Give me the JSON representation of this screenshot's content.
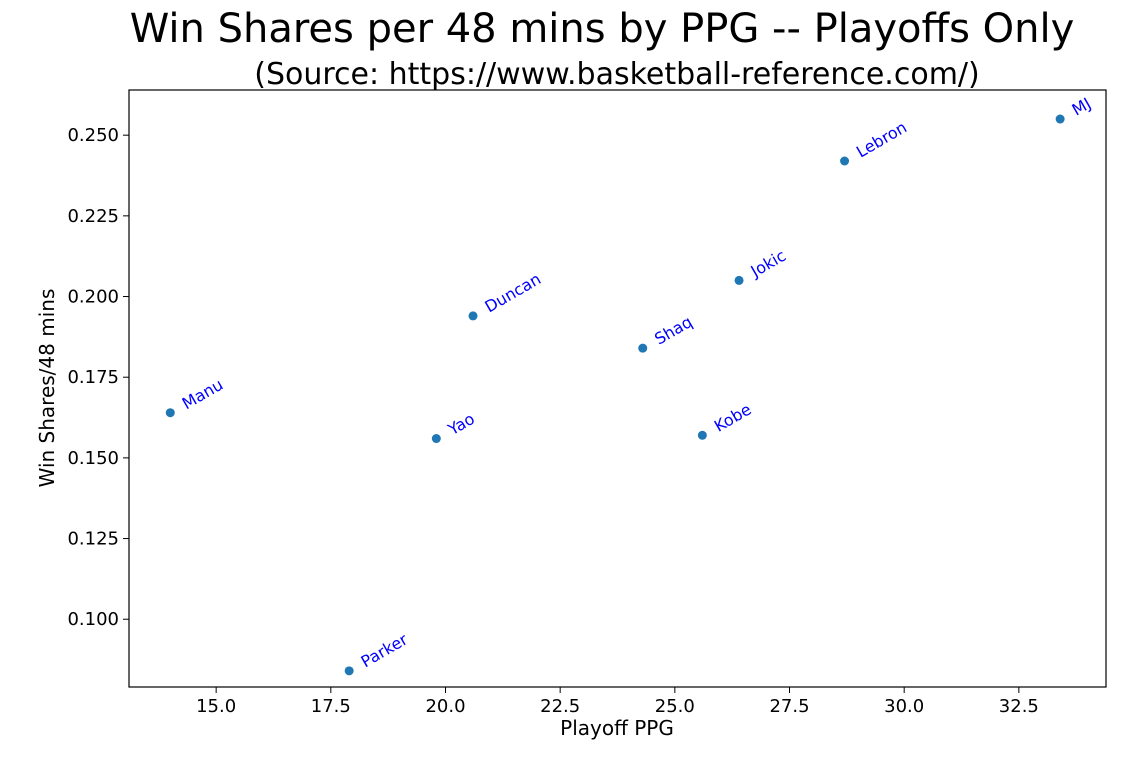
{
  "chart_data": {
    "type": "scatter",
    "title": "Win Shares per 48 mins by PPG -- Playoffs Only",
    "subtitle": "(Source: https://www.basketball-reference.com/)",
    "xlabel": "Playoff PPG",
    "ylabel": "Win Shares/48 mins",
    "xlim": [
      13.1,
      34.4
    ],
    "ylim": [
      0.079,
      0.264
    ],
    "xticks": [
      15.0,
      17.5,
      20.0,
      22.5,
      25.0,
      27.5,
      30.0,
      32.5
    ],
    "xtick_labels": [
      "15.0",
      "17.5",
      "20.0",
      "22.5",
      "25.0",
      "27.5",
      "30.0",
      "32.5"
    ],
    "yticks": [
      0.1,
      0.125,
      0.15,
      0.175,
      0.2,
      0.225,
      0.25
    ],
    "ytick_labels": [
      "0.100",
      "0.125",
      "0.150",
      "0.175",
      "0.200",
      "0.225",
      "0.250"
    ],
    "grid": false,
    "point_color": "#1f77b4",
    "label_color": "#0000ff",
    "points": [
      {
        "label": "Manu",
        "x": 14.0,
        "y": 0.164
      },
      {
        "label": "Parker",
        "x": 17.9,
        "y": 0.084
      },
      {
        "label": "Yao",
        "x": 19.8,
        "y": 0.156
      },
      {
        "label": "Duncan",
        "x": 20.6,
        "y": 0.194
      },
      {
        "label": "Shaq",
        "x": 24.3,
        "y": 0.184
      },
      {
        "label": "Kobe",
        "x": 25.6,
        "y": 0.157
      },
      {
        "label": "Jokic",
        "x": 26.4,
        "y": 0.205
      },
      {
        "label": "Lebron",
        "x": 28.7,
        "y": 0.242
      },
      {
        "label": "MJ",
        "x": 33.4,
        "y": 0.255
      }
    ]
  }
}
